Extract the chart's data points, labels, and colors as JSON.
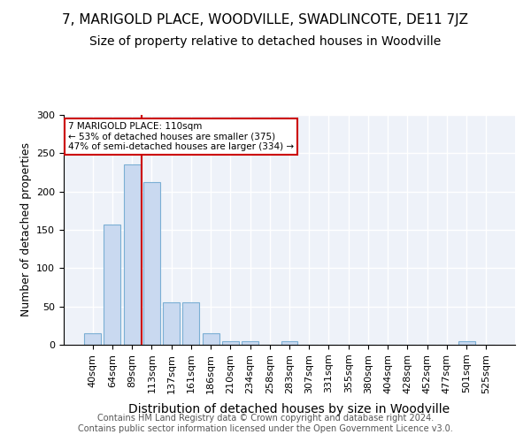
{
  "title1": "7, MARIGOLD PLACE, WOODVILLE, SWADLINCOTE, DE11 7JZ",
  "title2": "Size of property relative to detached houses in Woodville",
  "xlabel": "Distribution of detached houses by size in Woodville",
  "ylabel": "Number of detached properties",
  "bin_labels": [
    "40sqm",
    "64sqm",
    "89sqm",
    "113sqm",
    "137sqm",
    "161sqm",
    "186sqm",
    "210sqm",
    "234sqm",
    "258sqm",
    "283sqm",
    "307sqm",
    "331sqm",
    "355sqm",
    "380sqm",
    "404sqm",
    "428sqm",
    "452sqm",
    "477sqm",
    "501sqm",
    "525sqm"
  ],
  "bar_heights": [
    15,
    157,
    235,
    212,
    55,
    55,
    15,
    5,
    5,
    0,
    5,
    0,
    0,
    0,
    0,
    0,
    0,
    0,
    0,
    5,
    0
  ],
  "bar_color": "#c9d9f0",
  "bar_edge_color": "#7bafd4",
  "vline_x": 3,
  "vline_color": "#cc0000",
  "annotation_text": "7 MARIGOLD PLACE: 110sqm\n← 53% of detached houses are smaller (375)\n47% of semi-detached houses are larger (334) →",
  "annotation_box_color": "#cc0000",
  "ylim": [
    0,
    300
  ],
  "yticks": [
    0,
    50,
    100,
    150,
    200,
    250,
    300
  ],
  "background_color": "#eef2f9",
  "footer_text": "Contains HM Land Registry data © Crown copyright and database right 2024.\nContains public sector information licensed under the Open Government Licence v3.0.",
  "title1_fontsize": 11,
  "title2_fontsize": 10,
  "xlabel_fontsize": 10,
  "ylabel_fontsize": 9,
  "tick_fontsize": 8,
  "footer_fontsize": 7
}
